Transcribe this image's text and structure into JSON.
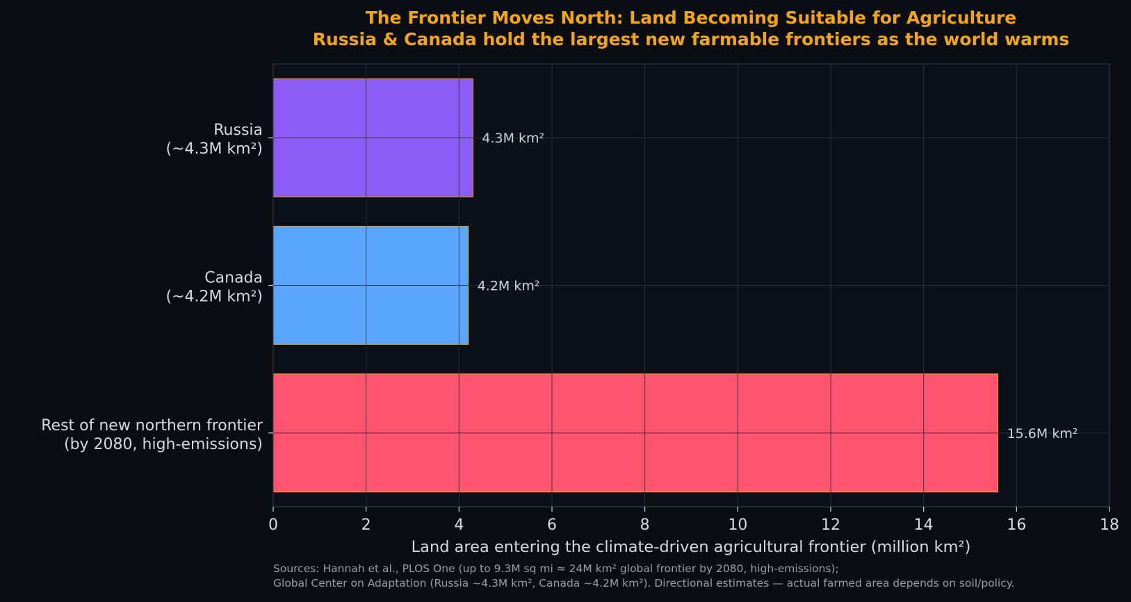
{
  "chart_data": {
    "type": "bar",
    "orientation": "horizontal",
    "title_lines": [
      "The Frontier Moves North: Land Becoming Suitable for Agriculture",
      "Russia & Canada hold the largest new farmable frontiers as the world warms"
    ],
    "categories": [
      {
        "line1": "Russia",
        "line2": "(~4.3M km²)"
      },
      {
        "line1": "Canada",
        "line2": "(~4.2M km²)"
      },
      {
        "line1": "Rest of new northern frontier",
        "line2": "(by 2080, high-emissions)"
      }
    ],
    "values": [
      4.3,
      4.2,
      15.6
    ],
    "data_labels": [
      "4.3M km²",
      "4.2M km²",
      "15.6M km²"
    ],
    "colors": [
      "#8b5cf6",
      "#58a6ff",
      "#ff5470"
    ],
    "bar_edge_color": "#f5a70a",
    "xlabel": "Land area entering the climate-driven agricultural frontier (million km²)",
    "xlim": [
      0,
      18
    ],
    "xticks": [
      "0",
      "2",
      "4",
      "6",
      "8",
      "10",
      "12",
      "14",
      "16",
      "18"
    ],
    "grid": true,
    "source_lines": [
      "Sources: Hannah et al., PLOS One (up to 9.3M sq mi ≈ 24M km² global frontier by 2080, high-emissions);",
      "Global Center on Adaptation (Russia ~4.3M km², Canada ~4.2M km²). Directional estimates — actual farmed area depends on soil/policy."
    ]
  },
  "colors": {
    "background": "#0a0d14",
    "plot_background": "#0c1018",
    "title": "#f5a70a",
    "text": "#d6d9e0",
    "grid": "#2a2f3a"
  }
}
